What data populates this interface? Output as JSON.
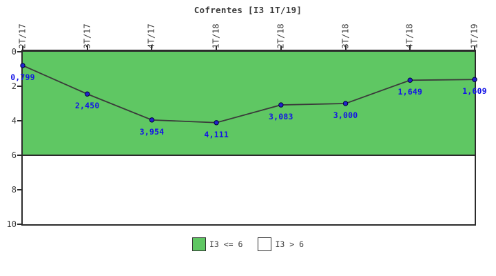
{
  "chart_data": {
    "type": "line",
    "title": "Cofrentes [I3 1T/19]",
    "categories": [
      "2T/17",
      "3T/17",
      "4T/17",
      "1T/18",
      "2T/18",
      "3T/18",
      "4T/18",
      "1T/19"
    ],
    "values": [
      0.799,
      2.45,
      3.954,
      4.111,
      3.083,
      3.0,
      1.649,
      1.609
    ],
    "point_labels": [
      "0,799",
      "2,450",
      "3,954",
      "4,111",
      "3,083",
      "3,000",
      "1,649",
      "1,609"
    ],
    "xlabel": "",
    "ylabel": "",
    "ylim": [
      0,
      10
    ],
    "yticks": [
      0,
      2,
      4,
      6,
      8,
      10
    ],
    "y_axis_inverted": true,
    "grid": false,
    "threshold": 6,
    "band_color": "#5FC763",
    "line_color": "#3a3a3a",
    "marker_color": "#2222CC",
    "marker_edge_color": "#00003a",
    "label_color": "#1414E6",
    "axis_color": "#2b2b2b",
    "legend_position": "bottom-center",
    "legend": [
      {
        "label": "I3 <= 6",
        "color": "#5FC763"
      },
      {
        "label": "I3 > 6",
        "color": "#FFFFFF"
      }
    ]
  }
}
